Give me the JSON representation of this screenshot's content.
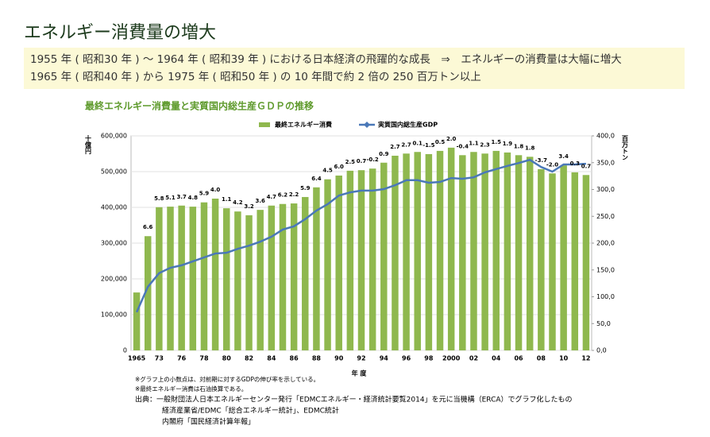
{
  "header": {
    "title": "エネルギー消費量の増大"
  },
  "summary": [
    "1955 年 ( 昭和30 年 ) ～ 1964 年 ( 昭和39 年 ) における日本経済の飛躍的な成長　⇒　エネルギーの消費量は大幅に増大",
    "1965 年 ( 昭和40 年 ) から 1975 年 ( 昭和50 年 ) の 10 年間で約 2 倍の 250 百万トン以上"
  ],
  "chart_data": {
    "type": "bar_line",
    "title": "最終エネルギー消費量と実質国内総生産ＧＤＰの推移",
    "xlabel": "年 度",
    "ylabel": "十億円",
    "y2label": "百万トン",
    "categories": [
      "1965",
      null,
      "73",
      null,
      "76",
      null,
      "78",
      null,
      "80",
      null,
      "82",
      null,
      "84",
      null,
      "86",
      null,
      "88",
      null,
      "90",
      null,
      "92",
      null,
      "94",
      null,
      "96",
      null,
      "98",
      null,
      "2000",
      null,
      "02",
      null,
      "04",
      null,
      "06",
      null,
      "08",
      null,
      "10",
      null,
      "12"
    ],
    "series": [
      {
        "name": "最終エネルギー消費",
        "type": "bar",
        "axis": "y2",
        "color": "#8fb84e",
        "values": [
          108,
          213,
          267,
          268,
          270,
          268,
          276,
          283,
          265,
          259,
          252,
          262,
          270,
          273,
          274,
          286,
          304,
          319,
          326,
          335,
          336,
          339,
          350,
          363,
          367,
          370,
          366,
          372,
          378,
          364,
          370,
          367,
          372,
          369,
          364,
          361,
          338,
          330,
          345,
          332,
          327
        ]
      },
      {
        "name": "実質国内総生産GDP",
        "type": "line",
        "axis": "y",
        "color": "#4a78b8",
        "values": [
          107000,
          178000,
          216000,
          231000,
          238000,
          249000,
          260000,
          271000,
          273000,
          284000,
          293000,
          304000,
          318000,
          338000,
          347000,
          367000,
          391000,
          409000,
          433000,
          442000,
          447000,
          447000,
          451000,
          462000,
          476000,
          476000,
          469000,
          471000,
          482000,
          480000,
          484000,
          498000,
          507000,
          516000,
          524000,
          533000,
          513000,
          500000,
          520000,
          520000,
          522000
        ],
        "growth_labels": [
          null,
          "6.6",
          "5.8",
          "5.1",
          "3.7",
          "4.8",
          "5.9",
          "4.0",
          "1.1",
          "4.2",
          "3.2",
          "3.6",
          "4.7",
          "6.2",
          "2.2",
          "5.9",
          "6.4",
          "4.5",
          "6.0",
          "2.5",
          "0.7",
          "-0.2",
          "0.9",
          "2.7",
          "2.7",
          "0.1",
          "-1.5",
          "0.5",
          "2.0",
          "-0.4",
          "1.1",
          "2.3",
          "1.5",
          "1.9",
          "1.8",
          "1.8",
          "-3.7",
          "-2.0",
          "3.4",
          "0.3",
          "0.7"
        ]
      }
    ],
    "ylim": [
      0,
      600000
    ],
    "yticks": [
      0,
      {
        "value": 100000,
        "label": "100,000"
      },
      {
        "value": 200000,
        "label": "200,000"
      },
      {
        "value": 300000,
        "label": "300,000"
      },
      {
        "value": 400000,
        "label": "400,000"
      },
      {
        "value": 500000,
        "label": "500,000"
      },
      {
        "value": 600000,
        "label": "600,000"
      }
    ],
    "y2lim": [
      0,
      400
    ],
    "y2ticks": [
      {
        "value": 0,
        "label": "0,0"
      },
      {
        "value": 50,
        "label": "50,0"
      },
      {
        "value": 100,
        "label": "100,0"
      },
      {
        "value": 150,
        "label": "150,0"
      },
      {
        "value": 200,
        "label": "200,0"
      },
      {
        "value": 250,
        "label": "250,0"
      },
      {
        "value": 300,
        "label": "300,0"
      },
      {
        "value": 350,
        "label": "350,0"
      },
      {
        "value": 400,
        "label": "400,0"
      }
    ],
    "grid": true
  },
  "notes": [
    "※グラフ上の小数点は、対前期に対するGDPの伸び率を示している。",
    "※最終エネルギー消費は石油換算である。"
  ],
  "source": [
    "出典：一般財団法人日本エネルギーセンター発行「EDMCエネルギー・経済統計要覧2014」を元に当機構（ERCA）でグラフ化したもの",
    "経済産業省/EDMC「総合エネルギー統計」、EDMC統計",
    "内閣府「国民経済計算年報」"
  ]
}
